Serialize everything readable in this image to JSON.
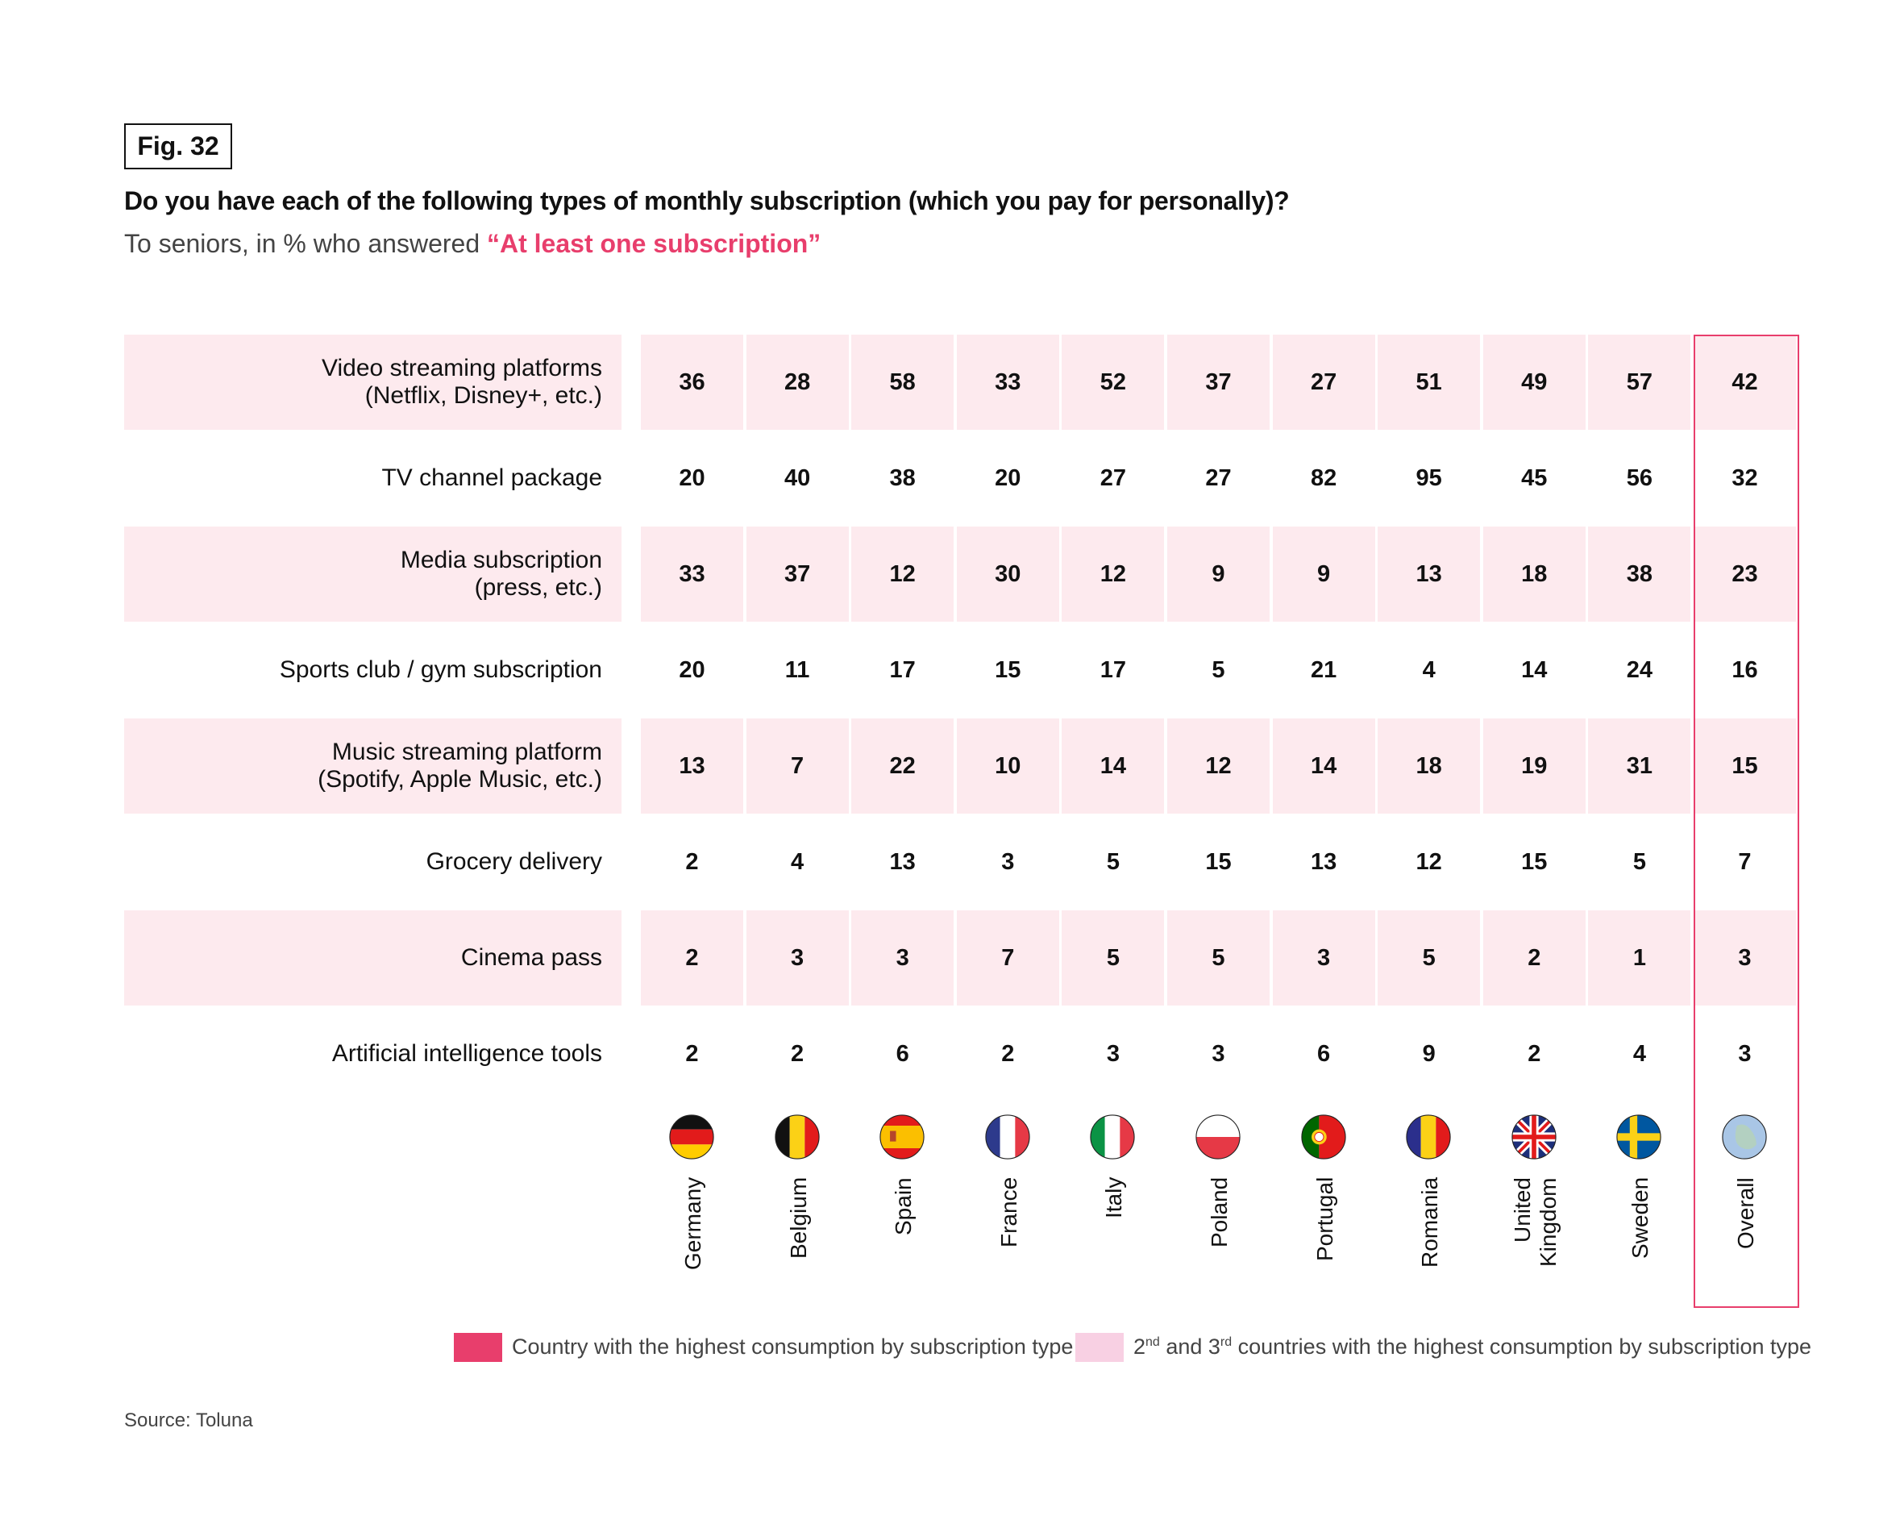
{
  "fig_label": "Fig. 32",
  "title": "Do you have each of the following types of monthly subscription (which you pay for personally)?",
  "subtitle_prefix": "To seniors, in % who answered ",
  "subtitle_highlight": "“At least one subscription”",
  "colors": {
    "accent": "#e83e6c",
    "row_band": "#fdeaee",
    "highest": "#e83e6c",
    "second_third": "#f8d0e3"
  },
  "chart_data": {
    "type": "table",
    "columns": [
      "Germany",
      "Belgium",
      "Spain",
      "France",
      "Italy",
      "Poland",
      "Portugal",
      "Romania",
      "United\nKingdom",
      "Sweden",
      "Overall"
    ],
    "flag_icons": [
      "germany-flag",
      "belgium-flag",
      "spain-flag",
      "france-flag",
      "italy-flag",
      "poland-flag",
      "portugal-flag",
      "romania-flag",
      "uk-flag",
      "sweden-flag",
      "globe"
    ],
    "rows": [
      {
        "label": "Video streaming platforms\n(Netflix, Disney+, etc.)",
        "values": [
          36,
          28,
          58,
          33,
          52,
          37,
          27,
          51,
          49,
          57,
          42
        ]
      },
      {
        "label": "TV channel package",
        "values": [
          20,
          40,
          38,
          20,
          27,
          27,
          82,
          95,
          45,
          56,
          32
        ]
      },
      {
        "label": "Media subscription\n(press, etc.)",
        "values": [
          33,
          37,
          12,
          30,
          12,
          9,
          9,
          13,
          18,
          38,
          23
        ]
      },
      {
        "label": "Sports club / gym subscription",
        "values": [
          20,
          11,
          17,
          15,
          17,
          5,
          21,
          4,
          14,
          24,
          16
        ]
      },
      {
        "label": "Music streaming platform\n(Spotify, Apple Music, etc.)",
        "values": [
          13,
          7,
          22,
          10,
          14,
          12,
          14,
          18,
          19,
          31,
          15
        ]
      },
      {
        "label": "Grocery delivery",
        "values": [
          2,
          4,
          13,
          3,
          5,
          15,
          13,
          12,
          15,
          5,
          7
        ]
      },
      {
        "label": "Cinema pass",
        "values": [
          2,
          3,
          3,
          7,
          5,
          5,
          3,
          5,
          2,
          1,
          3
        ]
      },
      {
        "label": "Artificial intelligence tools",
        "values": [
          2,
          2,
          6,
          2,
          3,
          3,
          6,
          9,
          2,
          4,
          3
        ]
      }
    ]
  },
  "legend": {
    "highest": "Country with the highest consumption by subscription type",
    "second_prefix": "2",
    "second_sup1": "nd",
    "second_mid": " and 3",
    "second_sup2": "rd",
    "second_suffix": " countries with the highest consumption by subscription type"
  },
  "source": "Source: Toluna"
}
